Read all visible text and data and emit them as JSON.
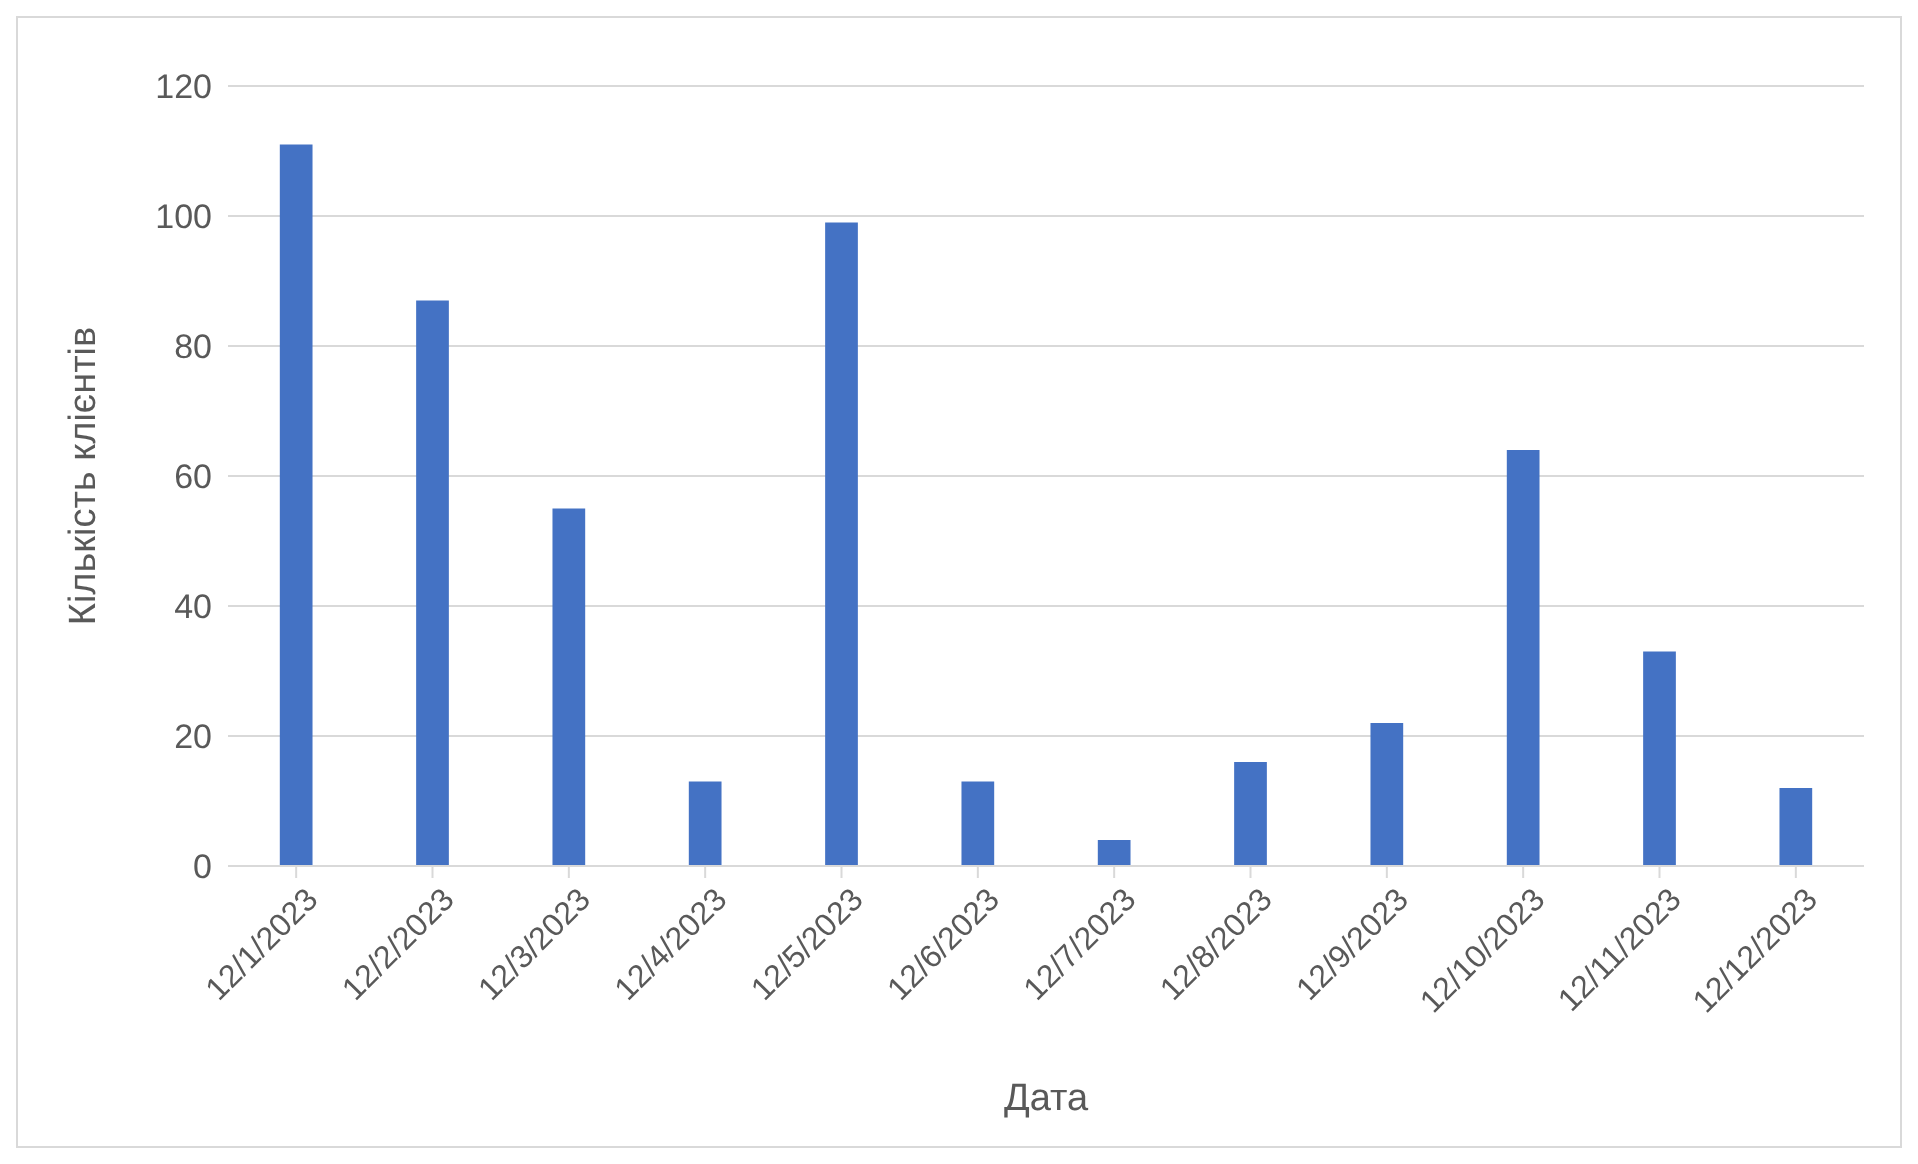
{
  "chart_data": {
    "type": "bar",
    "xlabel": "Дата",
    "ylabel": "Кількість клієнтів",
    "categories": [
      "12/1/2023",
      "12/2/2023",
      "12/3/2023",
      "12/4/2023",
      "12/5/2023",
      "12/6/2023",
      "12/7/2023",
      "12/8/2023",
      "12/9/2023",
      "12/10/2023",
      "12/11/2023",
      "12/12/2023"
    ],
    "values": [
      111,
      87,
      55,
      13,
      99,
      13,
      4,
      16,
      22,
      64,
      33,
      12
    ],
    "color": "#4472c4",
    "ylim": [
      0,
      120
    ],
    "yticks": [
      0,
      20,
      40,
      60,
      80,
      100,
      120
    ],
    "grid": "y",
    "legend": false
  }
}
